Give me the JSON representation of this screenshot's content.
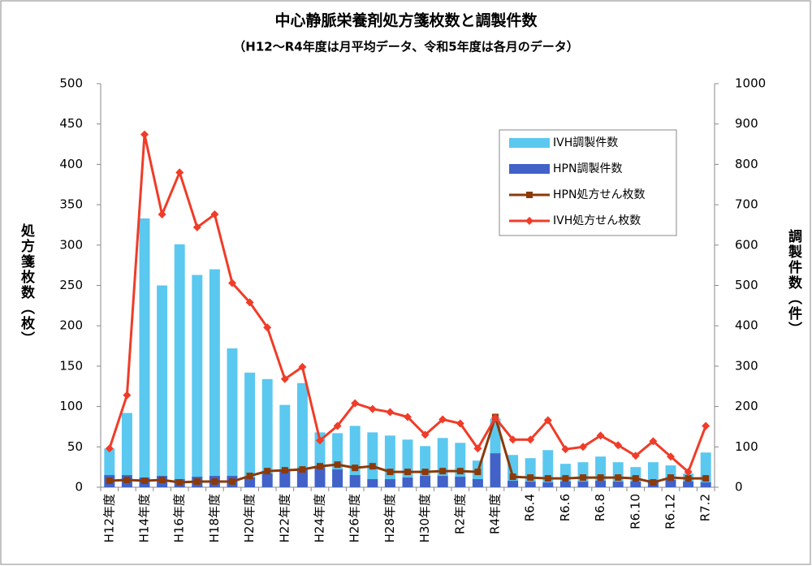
{
  "chart_data": {
    "type": "combo",
    "title": "中心静脈栄養剤処方箋枚数と調製件数",
    "subtitle": "（H12～R4年度は月平均データ、令和5年度は各月のデータ）",
    "y_label": "処方箋枚数（枚）",
    "y2_label": "調製件数（件）",
    "categories": [
      "H12年度",
      null,
      "H14年度",
      null,
      "H16年度",
      null,
      "H18年度",
      null,
      "H20年度",
      null,
      "H22年度",
      null,
      "H24年度",
      null,
      "H26年度",
      null,
      "H28年度",
      null,
      "H30年度",
      null,
      "R2年度",
      null,
      "R4年度",
      null,
      "R6.4",
      null,
      "R6.6",
      null,
      "R6.8",
      null,
      "R6.10",
      null,
      "R6.12",
      null,
      "R7.2"
    ],
    "ylim": [
      0,
      500
    ],
    "yticks": [
      0,
      50,
      100,
      150,
      200,
      250,
      300,
      350,
      400,
      450,
      500
    ],
    "y2lim": [
      0,
      1000
    ],
    "y2ticks": [
      0,
      100,
      200,
      300,
      400,
      500,
      600,
      700,
      800,
      900,
      1000
    ],
    "grid": false,
    "legend": "upper-right",
    "series": [
      {
        "name": "IVH調製件数",
        "type": "bar",
        "axis": "y2",
        "color": "#5bc8f0",
        "values": [
          96,
          184,
          666,
          500,
          602,
          526,
          540,
          344,
          284,
          268,
          204,
          258,
          136,
          134,
          152,
          136,
          128,
          118,
          102,
          122,
          110,
          66,
          170,
          80,
          72,
          92,
          58,
          62,
          76,
          62,
          50,
          62,
          54,
          34,
          86
        ]
      },
      {
        "name": "HPN調製件数",
        "type": "bar",
        "axis": "y2",
        "color": "#4262c8",
        "values": [
          30,
          30,
          24,
          28,
          20,
          26,
          28,
          28,
          24,
          34,
          40,
          48,
          50,
          44,
          30,
          20,
          20,
          24,
          28,
          28,
          26,
          20,
          84,
          16,
          14,
          12,
          14,
          14,
          16,
          14,
          14,
          18,
          18,
          14,
          12
        ]
      },
      {
        "name": "HPN処方せん枚数",
        "type": "line",
        "axis": "y",
        "color": "#8b3a0a",
        "marker": "square",
        "values": [
          8,
          9,
          8,
          9,
          6,
          7,
          7,
          7,
          14,
          20,
          21,
          22,
          26,
          28,
          24,
          26,
          19,
          19,
          19,
          20,
          20,
          19,
          87,
          13,
          12,
          11,
          11,
          12,
          12,
          12,
          11,
          6,
          12,
          11,
          11
        ]
      },
      {
        "name": "IVH処方せん枚数",
        "type": "line",
        "axis": "y",
        "color": "#f03c28",
        "marker": "diamond",
        "values": [
          48,
          114,
          437,
          338,
          390,
          322,
          338,
          253,
          229,
          198,
          134,
          149,
          58,
          76,
          104,
          97,
          93,
          87,
          65,
          84,
          79,
          48,
          86,
          59,
          59,
          83,
          47,
          50,
          64,
          52,
          39,
          57,
          38,
          19,
          76
        ]
      }
    ]
  }
}
